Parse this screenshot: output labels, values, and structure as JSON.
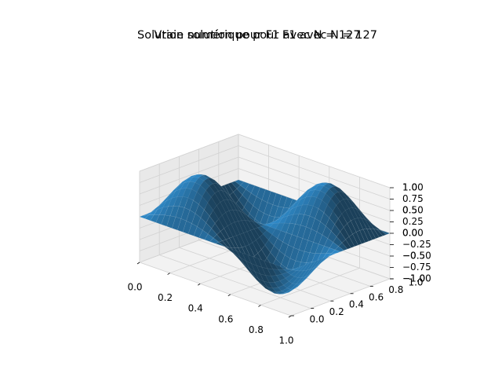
{
  "figure": {
    "titles": [
      "Vraie solution pour F1 avec N = 127",
      "Solution numérique pour F1 avec N = 127"
    ]
  },
  "chart_data": {
    "type": "surface3d",
    "title_overlay": [
      "Vraie solution pour F1 avec N = 127",
      "Solution numérique pour F1 avec N = 127"
    ],
    "surface_color": "#1f77b4",
    "N": 127,
    "xlim": [
      0,
      1
    ],
    "ylim": [
      0,
      1
    ],
    "zlim": [
      -1,
      1
    ],
    "x_ticks": [
      "0.0",
      "0.2",
      "0.4",
      "0.6",
      "0.8",
      "1.0"
    ],
    "y_ticks": [
      "0.0",
      "0.2",
      "0.4",
      "0.6",
      "0.8",
      "1.0"
    ],
    "z_ticks": [
      "−1.00",
      "−0.75",
      "−0.50",
      "−0.25",
      "0.00",
      "0.25",
      "0.50",
      "0.75",
      "1.00"
    ],
    "z_ticks_overlay": [
      "−1.0",
      "−0.5",
      "0.0",
      "0.5",
      "1.0"
    ],
    "surface_samples": {
      "x": [
        0.0,
        0.25,
        0.5,
        0.75,
        1.0
      ],
      "y": [
        0.0,
        0.25,
        0.5,
        0.75,
        1.0
      ],
      "z": [
        [
          0.0,
          0.0,
          0.0,
          0.0,
          0.0
        ],
        [
          0.0,
          1.0,
          0.0,
          -1.0,
          0.0
        ],
        [
          0.0,
          0.0,
          0.0,
          0.0,
          0.0
        ],
        [
          0.0,
          -1.0,
          0.0,
          1.0,
          0.0
        ],
        [
          0.0,
          0.0,
          0.0,
          0.0,
          0.0
        ]
      ]
    },
    "grid": true,
    "pane_color": "#f2f2f2"
  }
}
